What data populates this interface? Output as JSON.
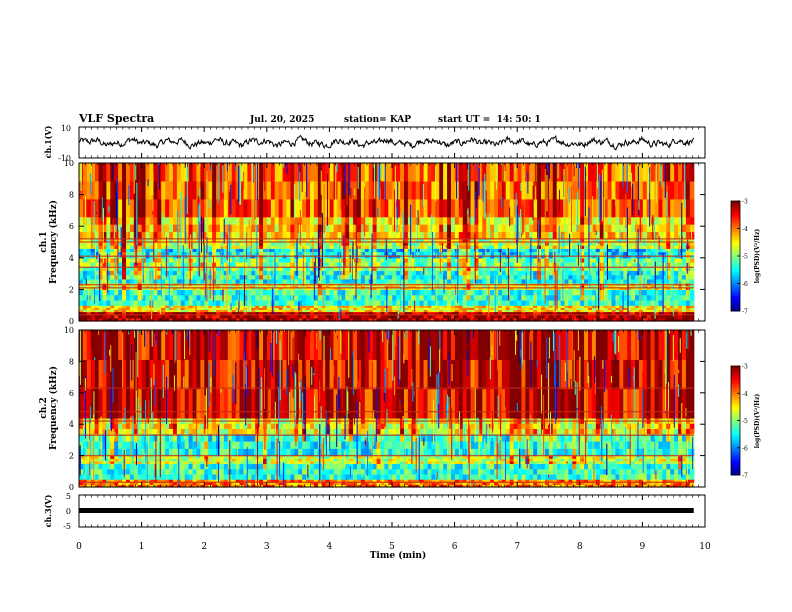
{
  "header": {
    "title": "VLF Spectra",
    "date": "Jul. 20, 2025",
    "station": "station= KAP",
    "start_time": "start UT =  14: 50: 1"
  },
  "chart_data": [
    {
      "type": "line",
      "name": "ch1-waveform",
      "ylabel": "ch.1(V)",
      "ylim": [
        -10,
        10
      ],
      "ytick_labels": [
        "10",
        "-10"
      ],
      "xlim": [
        0,
        10
      ]
    },
    {
      "type": "heatmap",
      "name": "ch1-spectrogram",
      "ylabel": "ch.1\nFrequency (kHz)",
      "ylabel_line1": "ch.1",
      "ylabel_line2": "Frequency (kHz)",
      "ylim": [
        0,
        10
      ],
      "ytick_labels": [
        "0",
        "2",
        "4",
        "6",
        "8",
        "10"
      ],
      "xlim": [
        0,
        9.82
      ],
      "colorbar": {
        "label": "log(PSD)(V²/Hz)",
        "range": [
          -7,
          -3
        ],
        "tick_labels": [
          "-3",
          "-4",
          "-5",
          "-6",
          "-7"
        ]
      },
      "bands_kHz": [
        {
          "from": 0.0,
          "to": 0.6,
          "level": -3.2
        },
        {
          "from": 0.6,
          "to": 1.0,
          "level": -4.4
        },
        {
          "from": 1.0,
          "to": 2.0,
          "level": -5.3
        },
        {
          "from": 2.0,
          "to": 2.4,
          "level": -4.6
        },
        {
          "from": 2.4,
          "to": 3.2,
          "level": -5.4
        },
        {
          "from": 3.2,
          "to": 4.0,
          "level": -5.0
        },
        {
          "from": 4.0,
          "to": 4.6,
          "level": -5.6
        },
        {
          "from": 4.6,
          "to": 5.2,
          "level": -4.8
        },
        {
          "from": 5.2,
          "to": 6.6,
          "level": -4.4
        },
        {
          "from": 6.6,
          "to": 10.0,
          "level": -3.9
        }
      ],
      "tones_kHz": [
        0.4,
        2.1,
        2.3,
        3.4,
        4.1,
        5.0,
        5.2
      ]
    },
    {
      "type": "heatmap",
      "name": "ch2-spectrogram",
      "ylabel": "ch.2\nFrequency (kHz)",
      "ylabel_line1": "ch.2",
      "ylabel_line2": "Frequency (kHz)",
      "ylim": [
        0,
        10
      ],
      "ytick_labels": [
        "0",
        "2",
        "4",
        "6",
        "8",
        "10"
      ],
      "xlim": [
        0,
        9.82
      ],
      "colorbar": {
        "label": "log(PSD)(V²/Hz)",
        "range": [
          -7,
          -3
        ],
        "tick_labels": [
          "-3",
          "-4",
          "-5",
          "-6",
          "-7"
        ]
      },
      "bands_kHz": [
        {
          "from": 0.0,
          "to": 0.5,
          "level": -4.0
        },
        {
          "from": 0.5,
          "to": 1.5,
          "level": -5.3
        },
        {
          "from": 1.5,
          "to": 2.0,
          "level": -4.7
        },
        {
          "from": 2.0,
          "to": 3.4,
          "level": -5.4
        },
        {
          "from": 3.4,
          "to": 4.4,
          "level": -4.6
        },
        {
          "from": 4.4,
          "to": 10.0,
          "level": -3.5
        }
      ],
      "tones_kHz": [
        0.3,
        2.0,
        3.3,
        4.2,
        4.8,
        6.3
      ]
    },
    {
      "type": "line",
      "name": "ch3-waveform",
      "ylabel": "ch.3(V)",
      "ylim": [
        -5,
        5
      ],
      "ytick_labels": [
        "5",
        "0",
        "-5"
      ],
      "level": 0,
      "xlim": [
        0,
        9.82
      ]
    }
  ],
  "x_axis": {
    "label": "Time (min)",
    "range": [
      0,
      10
    ],
    "tick_labels": [
      "0",
      "1",
      "2",
      "3",
      "4",
      "5",
      "6",
      "7",
      "8",
      "9",
      "10"
    ]
  },
  "data_end_min": 9.82
}
